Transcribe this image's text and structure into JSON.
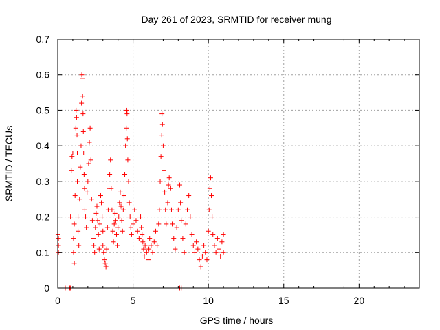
{
  "chart_data": {
    "type": "scatter",
    "title": "Day 261 of 2023, SRMTID for receiver mung",
    "xlabel": "GPS time / hours",
    "ylabel": "SRMTID / TECUs",
    "xlim": [
      0,
      24
    ],
    "ylim": [
      0,
      0.7
    ],
    "x_ticks": [
      "0",
      "5",
      "10",
      "15",
      "20"
    ],
    "y_ticks": [
      "0",
      "0.1",
      "0.2",
      "0.3",
      "0.4",
      "0.5",
      "0.6",
      "0.7"
    ],
    "grid": true,
    "marker": "+",
    "color": "#ff0000",
    "series": [
      {
        "points": [
          [
            0.02,
            0.15
          ],
          [
            0.05,
            0.14
          ],
          [
            0.05,
            0.12
          ],
          [
            0.05,
            0.1
          ],
          [
            0.5,
            0.0
          ],
          [
            0.8,
            0.0
          ],
          [
            0.85,
            0.0
          ],
          [
            0.85,
            0.2
          ],
          [
            0.9,
            0.33
          ],
          [
            0.95,
            0.37
          ],
          [
            1.0,
            0.38
          ],
          [
            1.05,
            0.14
          ],
          [
            1.05,
            0.1
          ],
          [
            1.1,
            0.07
          ],
          [
            1.1,
            0.18
          ],
          [
            1.15,
            0.26
          ],
          [
            1.2,
            0.45
          ],
          [
            1.22,
            0.5
          ],
          [
            1.25,
            0.48
          ],
          [
            1.28,
            0.43
          ],
          [
            1.3,
            0.38
          ],
          [
            1.3,
            0.3
          ],
          [
            1.35,
            0.2
          ],
          [
            1.35,
            0.16
          ],
          [
            1.4,
            0.12
          ],
          [
            1.45,
            0.25
          ],
          [
            1.5,
            0.34
          ],
          [
            1.55,
            0.4
          ],
          [
            1.58,
            0.52
          ],
          [
            1.6,
            0.6
          ],
          [
            1.62,
            0.59
          ],
          [
            1.65,
            0.54
          ],
          [
            1.68,
            0.49
          ],
          [
            1.7,
            0.44
          ],
          [
            1.72,
            0.38
          ],
          [
            1.75,
            0.32
          ],
          [
            1.78,
            0.28
          ],
          [
            1.8,
            0.22
          ],
          [
            1.85,
            0.2
          ],
          [
            1.9,
            0.17
          ],
          [
            1.95,
            0.27
          ],
          [
            2.0,
            0.3
          ],
          [
            2.05,
            0.35
          ],
          [
            2.1,
            0.41
          ],
          [
            2.15,
            0.45
          ],
          [
            2.2,
            0.36
          ],
          [
            2.25,
            0.25
          ],
          [
            2.3,
            0.19
          ],
          [
            2.35,
            0.14
          ],
          [
            2.4,
            0.12
          ],
          [
            2.45,
            0.1
          ],
          [
            2.5,
            0.17
          ],
          [
            2.55,
            0.21
          ],
          [
            2.6,
            0.23
          ],
          [
            2.65,
            0.19
          ],
          [
            2.7,
            0.15
          ],
          [
            2.75,
            0.11
          ],
          [
            2.8,
            0.18
          ],
          [
            2.85,
            0.26
          ],
          [
            2.9,
            0.24
          ],
          [
            2.95,
            0.2
          ],
          [
            3.0,
            0.16
          ],
          [
            3.0,
            0.12
          ],
          [
            3.05,
            0.1
          ],
          [
            3.1,
            0.08
          ],
          [
            3.15,
            0.07
          ],
          [
            3.2,
            0.06
          ],
          [
            3.25,
            0.11
          ],
          [
            3.3,
            0.17
          ],
          [
            3.35,
            0.22
          ],
          [
            3.4,
            0.28
          ],
          [
            3.45,
            0.32
          ],
          [
            3.5,
            0.36
          ],
          [
            3.55,
            0.28
          ],
          [
            3.6,
            0.22
          ],
          [
            3.65,
            0.16
          ],
          [
            3.7,
            0.13
          ],
          [
            3.75,
            0.18
          ],
          [
            3.8,
            0.21
          ],
          [
            3.85,
            0.19
          ],
          [
            3.9,
            0.15
          ],
          [
            3.95,
            0.12
          ],
          [
            4.0,
            0.17
          ],
          [
            4.05,
            0.2
          ],
          [
            4.1,
            0.24
          ],
          [
            4.15,
            0.27
          ],
          [
            4.2,
            0.23
          ],
          [
            4.25,
            0.19
          ],
          [
            4.3,
            0.16
          ],
          [
            4.35,
            0.22
          ],
          [
            4.4,
            0.26
          ],
          [
            4.45,
            0.32
          ],
          [
            4.5,
            0.4
          ],
          [
            4.55,
            0.45
          ],
          [
            4.58,
            0.5
          ],
          [
            4.6,
            0.49
          ],
          [
            4.62,
            0.42
          ],
          [
            4.65,
            0.36
          ],
          [
            4.7,
            0.3
          ],
          [
            4.75,
            0.24
          ],
          [
            4.8,
            0.2
          ],
          [
            4.85,
            0.17
          ],
          [
            4.9,
            0.15
          ],
          [
            5.0,
            0.18
          ],
          [
            5.1,
            0.22
          ],
          [
            5.2,
            0.19
          ],
          [
            5.3,
            0.16
          ],
          [
            5.4,
            0.14
          ],
          [
            5.5,
            0.2
          ],
          [
            5.55,
            0.17
          ],
          [
            5.6,
            0.15
          ],
          [
            5.65,
            0.13
          ],
          [
            5.7,
            0.11
          ],
          [
            5.75,
            0.09
          ],
          [
            5.8,
            0.12
          ],
          [
            5.9,
            0.1
          ],
          [
            6.0,
            0.08
          ],
          [
            6.05,
            0.11
          ],
          [
            6.1,
            0.14
          ],
          [
            6.2,
            0.12
          ],
          [
            6.3,
            0.1
          ],
          [
            6.4,
            0.13
          ],
          [
            6.5,
            0.16
          ],
          [
            6.6,
            0.12
          ],
          [
            6.7,
            0.18
          ],
          [
            6.75,
            0.22
          ],
          [
            6.8,
            0.3
          ],
          [
            6.85,
            0.37
          ],
          [
            6.9,
            0.43
          ],
          [
            6.92,
            0.49
          ],
          [
            6.95,
            0.46
          ],
          [
            7.0,
            0.4
          ],
          [
            7.05,
            0.33
          ],
          [
            7.1,
            0.27
          ],
          [
            7.15,
            0.22
          ],
          [
            7.2,
            0.18
          ],
          [
            7.3,
            0.24
          ],
          [
            7.35,
            0.29
          ],
          [
            7.4,
            0.31
          ],
          [
            7.5,
            0.28
          ],
          [
            7.55,
            0.22
          ],
          [
            7.6,
            0.18
          ],
          [
            7.7,
            0.14
          ],
          [
            7.8,
            0.11
          ],
          [
            7.9,
            0.17
          ],
          [
            8.0,
            0.22
          ],
          [
            8.1,
            0.29
          ],
          [
            8.15,
            0.24
          ],
          [
            8.2,
            0.19
          ],
          [
            8.1,
            0.0
          ],
          [
            8.2,
            0.0
          ],
          [
            8.3,
            0.14
          ],
          [
            8.4,
            0.1
          ],
          [
            8.5,
            0.18
          ],
          [
            8.6,
            0.22
          ],
          [
            8.7,
            0.26
          ],
          [
            8.8,
            0.2
          ],
          [
            8.9,
            0.15
          ],
          [
            9.0,
            0.12
          ],
          [
            9.1,
            0.1
          ],
          [
            9.2,
            0.13
          ],
          [
            9.3,
            0.11
          ],
          [
            9.4,
            0.08
          ],
          [
            9.5,
            0.06
          ],
          [
            9.6,
            0.09
          ],
          [
            9.7,
            0.12
          ],
          [
            9.8,
            0.1
          ],
          [
            9.9,
            0.08
          ],
          [
            10.0,
            0.16
          ],
          [
            10.05,
            0.22
          ],
          [
            10.1,
            0.28
          ],
          [
            10.15,
            0.31
          ],
          [
            10.2,
            0.26
          ],
          [
            10.25,
            0.2
          ],
          [
            10.3,
            0.15
          ],
          [
            10.4,
            0.12
          ],
          [
            10.5,
            0.1
          ],
          [
            10.6,
            0.14
          ],
          [
            10.7,
            0.11
          ],
          [
            10.8,
            0.09
          ],
          [
            10.9,
            0.13
          ],
          [
            11.0,
            0.15
          ],
          [
            11.0,
            0.1
          ]
        ]
      }
    ]
  }
}
